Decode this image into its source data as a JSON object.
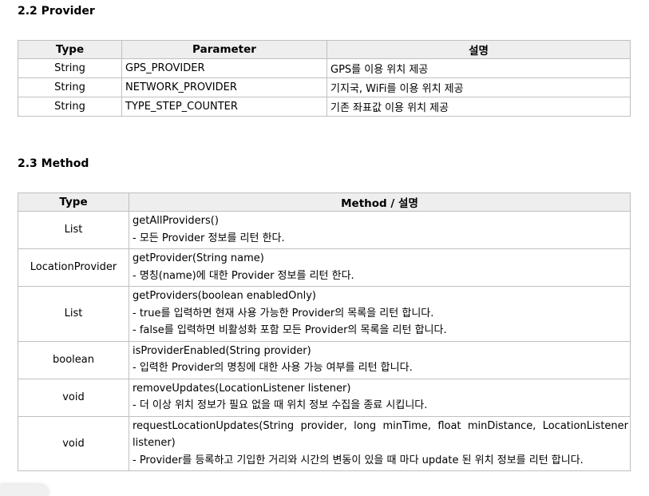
{
  "section1": {
    "title": "2.2 Provider",
    "headers": [
      "Type",
      "Parameter",
      "설명"
    ],
    "rows": [
      {
        "type": "String",
        "param": "GPS_PROVIDER",
        "desc": "GPS를 이용 위치 제공"
      },
      {
        "type": "String",
        "param": "NETWORK_PROVIDER",
        "desc": "기지국, WiFi를 이용 위치 제공"
      },
      {
        "type": "String",
        "param": "TYPE_STEP_COUNTER",
        "desc": "기존 좌표값 이용 위치 제공"
      }
    ]
  },
  "section2": {
    "title": "2.3 Method",
    "headers": [
      "Type",
      "Method / 설명"
    ],
    "rows": [
      {
        "type": "List",
        "method": "getAllProviders()",
        "desc": [
          " - 모든 Provider 정보를 리턴 한다."
        ]
      },
      {
        "type": "LocationProvider",
        "method": "getProvider(String name)",
        "desc": [
          " - 명칭(name)에 대한 Provider 정보를 리턴 한다."
        ]
      },
      {
        "type": "List",
        "method": "getProviders(boolean enabledOnly)",
        "desc": [
          " - true를 입력하면 현재 사용 가능한 Provider의 목록을 리턴 합니다.",
          " - false를 입력하면 비활성화 포함 모든 Provider의 목록을 리턴 합니다."
        ]
      },
      {
        "type": "boolean",
        "method": "isProviderEnabled(String provider)",
        "desc": [
          " - 입력한 Provider의 명칭에 대한 사용 가능 여부를 리턴 합니다."
        ]
      },
      {
        "type": "void",
        "method": "removeUpdates(LocationListener listener)",
        "desc": [
          " - 더 이상 위치 정보가 필요 없을 때 위치 정보 수집을 종료 시킵니다."
        ]
      },
      {
        "type": "void",
        "method": "requestLocationUpdates(String provider, long minTime, float minDistance, LocationListener listener)",
        "desc": [
          " - Provider를 등록하고 기입한 거리와 시간의 변동이 있을 때 마다 update 된 위치 정보를 리턴 합니다."
        ]
      }
    ]
  }
}
